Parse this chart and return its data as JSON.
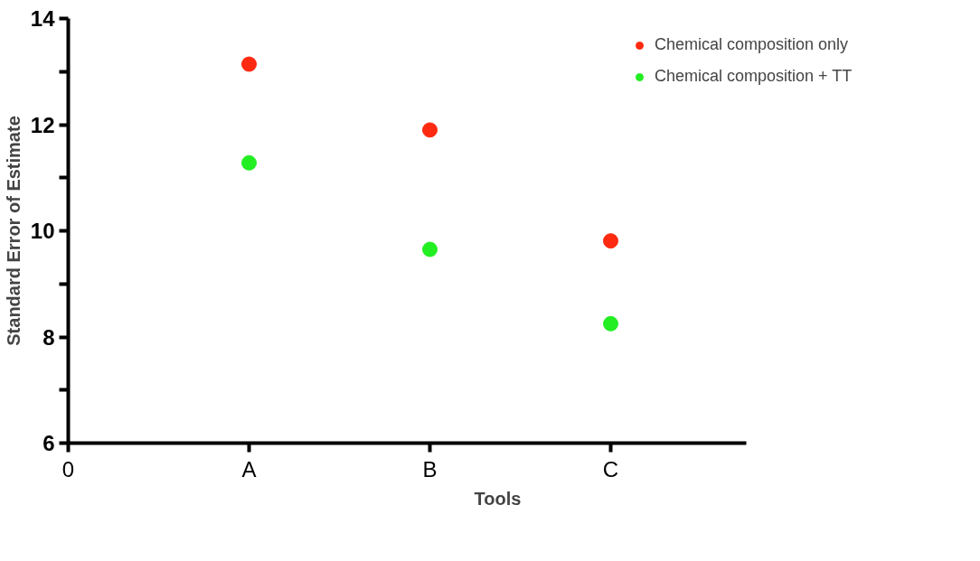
{
  "chart_data": {
    "type": "scatter",
    "xlabel": "Tools",
    "ylabel": "Standard Error of Estimate",
    "categories": [
      "0",
      "A",
      "B",
      "C"
    ],
    "series": [
      {
        "name": "Chemical composition only",
        "color": "#ff2a10",
        "values": [
          null,
          13.14,
          11.9,
          9.81
        ]
      },
      {
        "name": "Chemical composition + TT",
        "color": "#22ee22",
        "values": [
          null,
          11.28,
          9.65,
          8.25
        ]
      }
    ],
    "ylim": [
      6,
      14
    ],
    "yticks": [
      6,
      {
        "value": 7,
        "label": null
      },
      8,
      {
        "value": 9,
        "label": null
      },
      10,
      {
        "value": 11,
        "label": null
      },
      12,
      {
        "value": 13,
        "label": null
      },
      14
    ],
    "marker": "circle",
    "grid": false,
    "legend": "top right"
  }
}
